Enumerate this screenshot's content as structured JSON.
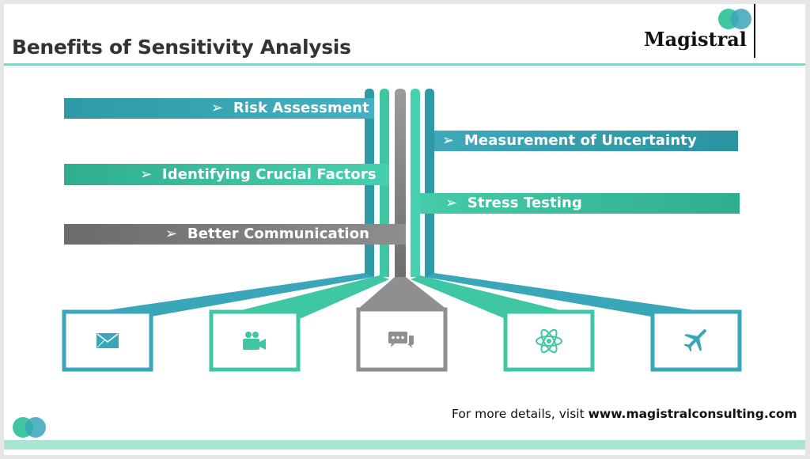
{
  "slide": {
    "title": "Benefits of Sensitivity Analysis",
    "logo": "Magistral",
    "footer_prefix": "For more details, visit ",
    "footer_link": "www.magistralconsulting.com"
  },
  "colors": {
    "blue": "#3aa6b9",
    "green": "#3fc7a4",
    "gray": "#8a8a8a",
    "dark_gray": "#6b6b6b",
    "teal_dark": "#2d9aa6",
    "accent_line": "#7fd6c2"
  },
  "benefits": {
    "risk": "Risk Assessment",
    "factors": "Identifying Crucial Factors",
    "communication": "Better Communication",
    "uncertainty": "Measurement of Uncertainty",
    "stress": "Stress Testing"
  },
  "icons": [
    "mail-icon",
    "video-camera-icon",
    "chat-icon",
    "atom-icon",
    "airplane-icon"
  ]
}
